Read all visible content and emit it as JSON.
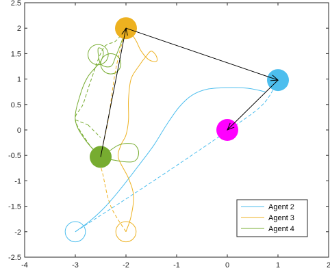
{
  "chart_data": {
    "type": "line",
    "title": "",
    "xlabel": "",
    "ylabel": "",
    "xlim": [
      -4,
      2
    ],
    "ylim": [
      -2.5,
      2.5
    ],
    "xticks": [
      -4,
      -3,
      -2,
      -1,
      0,
      1,
      2
    ],
    "yticks": [
      -2.5,
      -2,
      -1.5,
      -1,
      -0.5,
      0,
      0.5,
      1,
      1.5,
      2,
      2.5
    ],
    "grid": false,
    "legend_position": "bottom-right",
    "series": [
      {
        "name": "Agent 2",
        "color": "#4DBEEE",
        "solid": [
          [
            -3,
            -2
          ],
          [
            -2.7,
            -1.78
          ],
          [
            -2.4,
            -1.5
          ],
          [
            -2.1,
            -1.15
          ],
          [
            -1.75,
            -0.7
          ],
          [
            -1.45,
            -0.3
          ],
          [
            -1.2,
            0.1
          ],
          [
            -0.95,
            0.45
          ],
          [
            -0.7,
            0.68
          ],
          [
            -0.4,
            0.8
          ],
          [
            0,
            0.83
          ],
          [
            0.4,
            0.82
          ],
          [
            0.75,
            0.75
          ]
        ],
        "dashed": [
          [
            -3,
            -2
          ],
          [
            -1.5,
            -1.03
          ],
          [
            0,
            -0.02
          ],
          [
            0.7,
            0.5
          ],
          [
            1,
            0.98
          ]
        ],
        "circles": [
          [
            -3,
            -2
          ]
        ]
      },
      {
        "name": "Agent 3",
        "color": "#EDB120",
        "solid": [
          [
            -2,
            -2
          ],
          [
            -1.9,
            -1.7
          ],
          [
            -1.85,
            -1.3
          ],
          [
            -1.95,
            -0.95
          ],
          [
            -2.15,
            -0.55
          ],
          [
            -2.1,
            -0.3
          ],
          [
            -2,
            -0.1
          ],
          [
            -1.95,
            0.2
          ],
          [
            -1.95,
            0.6
          ],
          [
            -1.9,
            1.0
          ],
          [
            -1.75,
            1.25
          ],
          [
            -1.6,
            1.45
          ],
          [
            -1.5,
            1.55
          ],
          [
            -1.4,
            1.45
          ],
          [
            -1.4,
            1.35
          ],
          [
            -1.55,
            1.38
          ],
          [
            -1.7,
            1.55
          ],
          [
            -1.8,
            1.75
          ],
          [
            -1.9,
            1.9
          ],
          [
            -2,
            2
          ]
        ],
        "dashed": [
          [
            -2,
            -2
          ],
          [
            -2.3,
            -1.5
          ],
          [
            -2.45,
            -0.9
          ],
          [
            -2.5,
            -0.55
          ],
          [
            -2.35,
            0.2
          ],
          [
            -2.2,
            1.2
          ],
          [
            -2,
            2
          ]
        ],
        "circles": [
          [
            -2,
            -2
          ]
        ]
      },
      {
        "name": "Agent 4",
        "color": "#77AC30",
        "solid": [
          [
            -2.5,
            -0.55
          ],
          [
            -2.15,
            -0.3
          ],
          [
            -1.85,
            -0.28
          ],
          [
            -1.75,
            -0.45
          ],
          [
            -1.85,
            -0.62
          ],
          [
            -2.2,
            -0.6
          ],
          [
            -2.5,
            -0.5
          ],
          [
            -2.8,
            -0.2
          ],
          [
            -3.0,
            0.2
          ],
          [
            -2.9,
            0.7
          ],
          [
            -2.75,
            1.05
          ],
          [
            -2.5,
            1.35
          ],
          [
            -2.45,
            1.55
          ],
          [
            -2.55,
            1.6
          ],
          [
            -2.5,
            1.3
          ],
          [
            -2.3,
            1.25
          ],
          [
            -2.2,
            1.45
          ],
          [
            -2.1,
            1.7
          ],
          [
            -2,
            2
          ]
        ],
        "dashed": [
          [
            -2.5,
            -0.55
          ],
          [
            -2.75,
            -0.25
          ],
          [
            -3.0,
            0.2
          ],
          [
            -2.85,
            0.5
          ],
          [
            -2.7,
            0.95
          ],
          [
            -2.45,
            1.6
          ],
          [
            -2.2,
            1.75
          ],
          [
            -2,
            2
          ]
        ],
        "circles": [
          [
            -2.55,
            1.48
          ],
          [
            -2.3,
            1.3
          ]
        ],
        "dash_segments": [
          [
            [
              -3.0,
              0.2
            ],
            [
              -2.75,
              0.1
            ]
          ],
          [
            [
              -2.75,
              0.1
            ],
            [
              -2.5,
              -0.15
            ]
          ]
        ]
      }
    ],
    "markers": [
      {
        "name": "agent-1-position",
        "x": 0,
        "y": 0,
        "color": "#FF00FF"
      },
      {
        "name": "agent-2-position",
        "x": 1,
        "y": 0.98,
        "color": "#4DBEEE"
      },
      {
        "name": "agent-3-position",
        "x": -2,
        "y": 2,
        "color": "#EDB120"
      },
      {
        "name": "agent-4-position",
        "x": -2.5,
        "y": -0.53,
        "color": "#77AC30"
      }
    ],
    "arrows": [
      {
        "from": [
          -2.5,
          -0.53
        ],
        "to": [
          -2,
          2
        ]
      },
      {
        "from": [
          -2,
          2
        ],
        "to": [
          1,
          0.98
        ]
      },
      {
        "from": [
          1,
          0.98
        ],
        "to": [
          0,
          0
        ]
      }
    ]
  }
}
